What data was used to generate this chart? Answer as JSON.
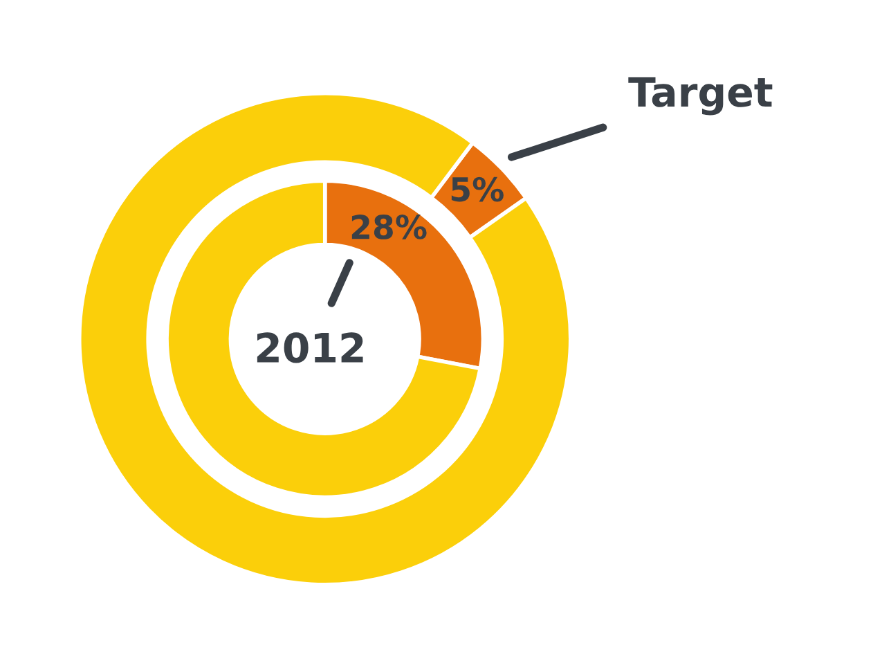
{
  "chart_data": {
    "type": "donut",
    "categories": [
      null,
      null
    ],
    "series": [
      {
        "name": "Target",
        "values": [
          5,
          95
        ],
        "colors": [
          "#e8700e",
          "#fbcf0a"
        ],
        "value_labels": [
          "5%",
          null
        ]
      },
      {
        "name": "2012",
        "values": [
          28,
          72
        ],
        "colors": [
          "#e8700e",
          "#fbcf0a"
        ],
        "value_labels": [
          "28%",
          null
        ]
      }
    ]
  }
}
